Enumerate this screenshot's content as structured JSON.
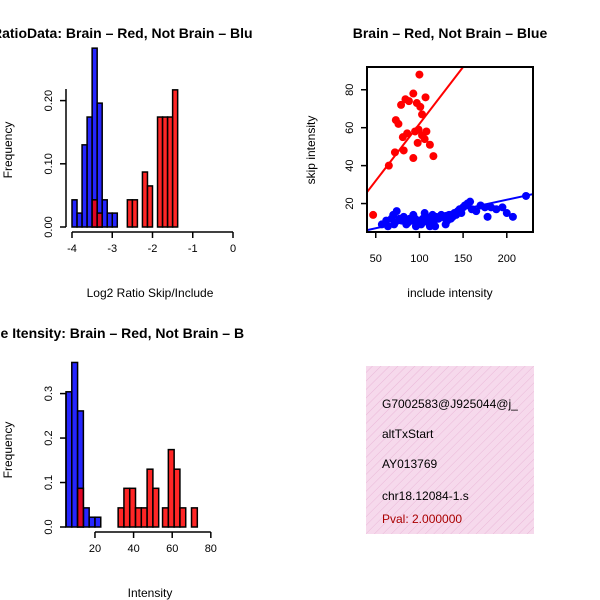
{
  "chart_data": [
    {
      "id": "hist_ratio",
      "type": "histogram",
      "title": "RatioData: Brain – Red, Not Brain – Blu",
      "xlabel": "Log2 Ratio Skip/Include",
      "ylabel": "Frequency",
      "xlim": [
        -4,
        0
      ],
      "ylim": [
        0,
        0.25
      ],
      "xticks": [
        "-4",
        "-3",
        "-2",
        "-1",
        "0"
      ],
      "xtick_values": [
        -4,
        -3,
        -2,
        -1,
        0
      ],
      "yticks": [
        "0.00",
        "0.10",
        "0.20"
      ],
      "ytick_values": [
        0,
        0.1,
        0.2
      ],
      "bin_width": 0.125,
      "series": [
        {
          "name": "Not Brain",
          "color": "#0000ff",
          "bins": [
            [
              -4.0,
              0.043
            ],
            [
              -3.875,
              0.022
            ],
            [
              -3.75,
              0.13
            ],
            [
              -3.625,
              0.174
            ],
            [
              -3.5,
              0.283
            ],
            [
              -3.375,
              0.196
            ],
            [
              -3.25,
              0.043
            ],
            [
              -3.125,
              0.022
            ],
            [
              -3.0,
              0.022
            ]
          ]
        },
        {
          "name": "Brain",
          "color": "#ff0000",
          "bins": [
            [
              -3.5,
              0.043
            ],
            [
              -3.375,
              0.022
            ],
            [
              -2.625,
              0.043
            ],
            [
              -2.5,
              0.043
            ],
            [
              -2.25,
              0.087
            ],
            [
              -2.125,
              0.065
            ],
            [
              -1.875,
              0.174
            ],
            [
              -1.75,
              0.174
            ],
            [
              -1.625,
              0.174
            ],
            [
              -1.5,
              0.217
            ]
          ]
        }
      ]
    },
    {
      "id": "scatter",
      "type": "scatter",
      "title": "Brain – Red, Not Brain – Blue",
      "xlabel": "include intensity",
      "ylabel": "skip intensity",
      "xlim": [
        40,
        230
      ],
      "ylim": [
        5,
        92
      ],
      "xticks": [
        "50",
        "100",
        "150",
        "200"
      ],
      "xtick_values": [
        50,
        100,
        150,
        200
      ],
      "yticks": [
        "20",
        "40",
        "60",
        "80"
      ],
      "ytick_values": [
        20,
        40,
        60,
        80
      ],
      "series": [
        {
          "name": "Brain",
          "color": "#ff0000",
          "points": [
            [
              47,
              14
            ],
            [
              76,
              62
            ],
            [
              73,
              64
            ],
            [
              81,
              55
            ],
            [
              86,
              57
            ],
            [
              79,
              72
            ],
            [
              84,
              75
            ],
            [
              88,
              74
            ],
            [
              93,
              78
            ],
            [
              100,
              88
            ],
            [
              97,
              73
            ],
            [
              101,
              71
            ],
            [
              103,
              67
            ],
            [
              107,
              76
            ],
            [
              95,
              58
            ],
            [
              93,
              44
            ],
            [
              98,
              52
            ],
            [
              99,
              59
            ],
            [
              103,
              56
            ],
            [
              106,
              54
            ],
            [
              108,
              58
            ],
            [
              112,
              51
            ],
            [
              116,
              45
            ],
            [
              65,
              40
            ],
            [
              72,
              47
            ],
            [
              82,
              48
            ]
          ],
          "fit": {
            "x0": 40,
            "y0": 26,
            "x1": 150,
            "y1": 92
          }
        },
        {
          "name": "Not Brain",
          "color": "#0000ff",
          "points": [
            [
              57,
              9
            ],
            [
              62,
              11
            ],
            [
              68,
              12
            ],
            [
              70,
              14
            ],
            [
              72,
              10
            ],
            [
              74,
              16
            ],
            [
              77,
              12
            ],
            [
              80,
              11
            ],
            [
              82,
              13
            ],
            [
              85,
              9
            ],
            [
              87,
              10
            ],
            [
              89,
              12
            ],
            [
              91,
              11
            ],
            [
              93,
              14
            ],
            [
              95,
              12
            ],
            [
              97,
              10
            ],
            [
              99,
              11
            ],
            [
              102,
              9
            ],
            [
              104,
              12
            ],
            [
              106,
              15
            ],
            [
              108,
              13
            ],
            [
              110,
              10
            ],
            [
              112,
              12
            ],
            [
              115,
              14
            ],
            [
              117,
              11
            ],
            [
              119,
              13
            ],
            [
              122,
              12
            ],
            [
              125,
              14
            ],
            [
              127,
              13
            ],
            [
              130,
              12
            ],
            [
              132,
              11
            ],
            [
              134,
              14
            ],
            [
              136,
              12
            ],
            [
              138,
              13
            ],
            [
              140,
              15
            ],
            [
              142,
              14
            ],
            [
              144,
              16
            ],
            [
              146,
              17
            ],
            [
              148,
              15
            ],
            [
              150,
              18
            ],
            [
              152,
              19
            ],
            [
              155,
              20
            ],
            [
              158,
              21
            ],
            [
              160,
              17
            ],
            [
              165,
              16
            ],
            [
              170,
              19
            ],
            [
              175,
              18
            ],
            [
              178,
              13
            ],
            [
              182,
              18
            ],
            [
              188,
              17
            ],
            [
              195,
              18
            ],
            [
              200,
              15
            ],
            [
              207,
              13
            ],
            [
              222,
              24
            ],
            [
              64,
              8
            ],
            [
              71,
              9
            ],
            [
              96,
              8
            ],
            [
              112,
              8
            ],
            [
              130,
              9
            ],
            [
              118,
              8
            ]
          ],
          "fit": {
            "x0": 40,
            "y0": 6,
            "x1": 230,
            "y1": 25
          }
        }
      ]
    },
    {
      "id": "hist_intensity",
      "type": "histogram",
      "title": "ne Itensity: Brain – Red, Not Brain – B",
      "xlabel": "Intensity",
      "ylabel": "Frequency",
      "xlim": [
        5,
        92
      ],
      "ylim": [
        0,
        0.38
      ],
      "xticks": [
        "20",
        "40",
        "60",
        "80"
      ],
      "xtick_values": [
        20,
        40,
        60,
        80
      ],
      "yticks": [
        "0.0",
        "0.1",
        "0.2",
        "0.3"
      ],
      "ytick_values": [
        0,
        0.1,
        0.2,
        0.3
      ],
      "bin_width": 3.0,
      "series": [
        {
          "name": "Not Brain",
          "color": "#0000ff",
          "bins": [
            [
              5,
              0.304
            ],
            [
              8,
              0.37
            ],
            [
              11,
              0.261
            ],
            [
              14,
              0.043
            ],
            [
              17,
              0.022
            ],
            [
              20,
              0.022
            ],
            [
              11,
              0
            ]
          ]
        },
        {
          "name": "Brain",
          "color": "#ff0000",
          "bins": [
            [
              11,
              0.087
            ],
            [
              32,
              0.043
            ],
            [
              35,
              0.087
            ],
            [
              38,
              0.087
            ],
            [
              41,
              0.043
            ],
            [
              44,
              0.043
            ],
            [
              47,
              0.13
            ],
            [
              50,
              0.087
            ],
            [
              55,
              0.043
            ],
            [
              58,
              0.174
            ],
            [
              61,
              0.13
            ],
            [
              64,
              0.043
            ],
            [
              70,
              0.043
            ]
          ]
        }
      ]
    }
  ],
  "info_panel": {
    "event_id": "G7002583@J925044@j_",
    "event_type": "altTxStart",
    "accession": "AY013769",
    "probe": "chr18.12084-1.s",
    "pval": "Pval: 2.000000"
  }
}
